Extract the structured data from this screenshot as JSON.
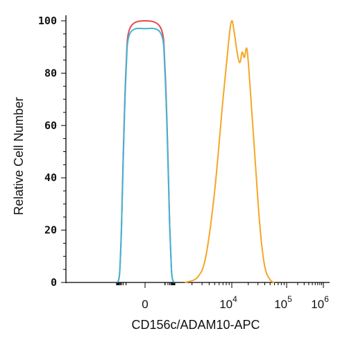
{
  "chart_data": {
    "type": "line",
    "title": "",
    "xlabel": "CD156c/ADAM10-APC",
    "ylabel": "Relative Cell Number",
    "xscale": "biexponential",
    "ylim": [
      0,
      100
    ],
    "y_ticks": [
      "0",
      "20",
      "40",
      "60",
      "80",
      "100"
    ],
    "x_ticks": [
      {
        "base": "0",
        "exp": ""
      },
      {
        "base": "10",
        "exp": "4"
      },
      {
        "base": "10",
        "exp": "5"
      },
      {
        "base": "10",
        "exp": "6"
      }
    ],
    "grid": false,
    "legend": "none",
    "series": [
      {
        "color": "#e8474b",
        "points": [
          [
            -900,
            0
          ],
          [
            -600,
            1
          ],
          [
            -450,
            5
          ],
          [
            -300,
            22
          ],
          [
            -200,
            48
          ],
          [
            -100,
            82
          ],
          [
            -40,
            97
          ],
          [
            0,
            100
          ],
          [
            40,
            97
          ],
          [
            100,
            82
          ],
          [
            200,
            48
          ],
          [
            300,
            22
          ],
          [
            450,
            5
          ],
          [
            600,
            1
          ],
          [
            900,
            0
          ]
        ]
      },
      {
        "color": "#3fb6d8",
        "points": [
          [
            -900,
            0
          ],
          [
            -600,
            1
          ],
          [
            -450,
            5
          ],
          [
            -300,
            21
          ],
          [
            -200,
            46
          ],
          [
            -100,
            80
          ],
          [
            -40,
            95
          ],
          [
            0,
            97
          ],
          [
            40,
            95
          ],
          [
            100,
            80
          ],
          [
            200,
            46
          ],
          [
            300,
            21
          ],
          [
            450,
            5
          ],
          [
            600,
            1
          ],
          [
            900,
            0
          ]
        ]
      },
      {
        "color": "#f5a623",
        "points": [
          [
            1500,
            0
          ],
          [
            2500,
            2
          ],
          [
            3500,
            10
          ],
          [
            5000,
            35
          ],
          [
            7000,
            70
          ],
          [
            9000,
            94
          ],
          [
            10000,
            100
          ],
          [
            11000,
            96
          ],
          [
            12500,
            88
          ],
          [
            14000,
            84
          ],
          [
            15500,
            88
          ],
          [
            17000,
            86
          ],
          [
            19000,
            89
          ],
          [
            22000,
            72
          ],
          [
            27000,
            45
          ],
          [
            33000,
            20
          ],
          [
            40000,
            6
          ],
          [
            50000,
            1
          ],
          [
            60000,
            0
          ]
        ]
      }
    ]
  }
}
